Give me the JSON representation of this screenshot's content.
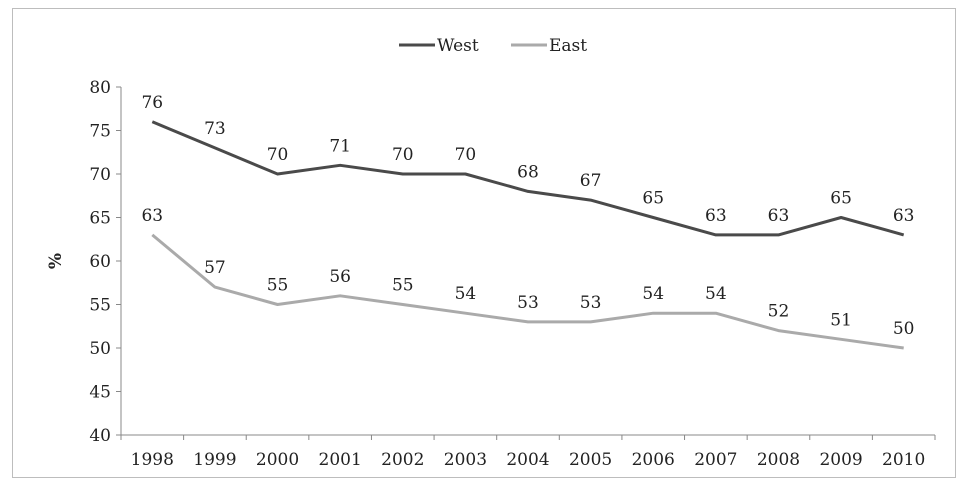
{
  "chart_data": {
    "type": "line",
    "title": "",
    "xlabel": "",
    "ylabel": "%",
    "categories": [
      "1998",
      "1999",
      "2000",
      "2001",
      "2002",
      "2003",
      "2004",
      "2005",
      "2006",
      "2007",
      "2008",
      "2009",
      "2010"
    ],
    "ylim": [
      40,
      80
    ],
    "yticks": [
      40,
      45,
      50,
      55,
      60,
      65,
      70,
      75,
      80
    ],
    "grid": false,
    "legend": "top-center",
    "series": [
      {
        "name": "West",
        "color": "#4a4a4a",
        "values": [
          76,
          73,
          70,
          71,
          70,
          70,
          68,
          67,
          65,
          63,
          63,
          65,
          63
        ]
      },
      {
        "name": "East",
        "color": "#aaaaaa",
        "values": [
          63,
          57,
          55,
          56,
          55,
          54,
          53,
          53,
          54,
          54,
          52,
          51,
          50
        ]
      }
    ]
  }
}
